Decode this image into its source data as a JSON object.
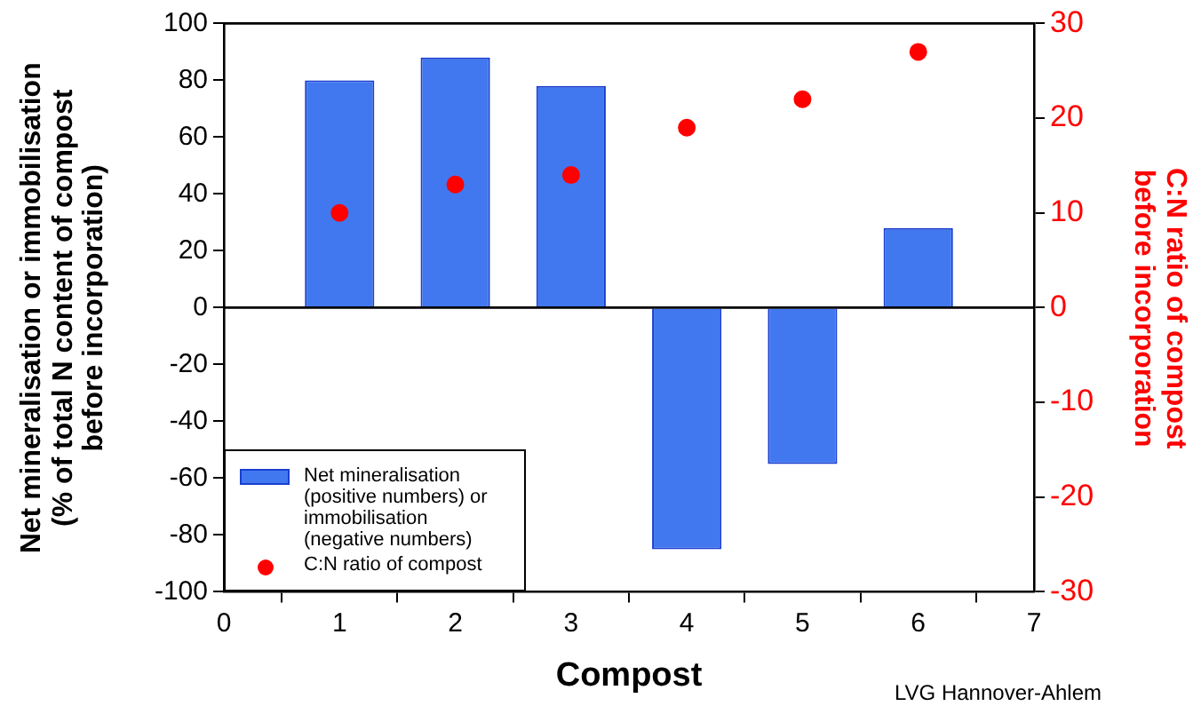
{
  "chart_data": {
    "type": "bar",
    "xlabel": "Compost",
    "ylabel": "Net mineralisation or immobilisation (% of total N content of compost before incorporation)",
    "y2label": "C:N ratio of compost before incorporation",
    "x": [
      1,
      2,
      3,
      4,
      5,
      6
    ],
    "series": [
      {
        "name": "Net mineralisation (positive numbers) or immobilisation (negative numbers)",
        "color": "#4178f0",
        "values": [
          80,
          88,
          78,
          -85,
          -55,
          28
        ]
      },
      {
        "name": "C:N ratio of compost",
        "type": "scatter",
        "axis": "y2",
        "color": "#ff0000",
        "values": [
          10,
          13,
          14,
          19,
          22,
          27
        ]
      }
    ],
    "xlim": [
      0,
      7
    ],
    "xticks": [
      0,
      1,
      2,
      3,
      4,
      5,
      6,
      7
    ],
    "ylim": [
      -100,
      100
    ],
    "yticks": [
      -100,
      -80,
      -60,
      -40,
      -20,
      0,
      20,
      40,
      60,
      80,
      100
    ],
    "y2lim": [
      -30,
      30
    ],
    "y2ticks": [
      -30,
      -20,
      -10,
      0,
      10,
      20,
      30
    ],
    "grid": false,
    "ref_lines": [
      {
        "axis": "y",
        "value": 0,
        "color": "#000000"
      }
    ],
    "legend": "bottom left",
    "marker": "circle",
    "annotations": [
      "LVG Hannover-Ahlem"
    ]
  }
}
